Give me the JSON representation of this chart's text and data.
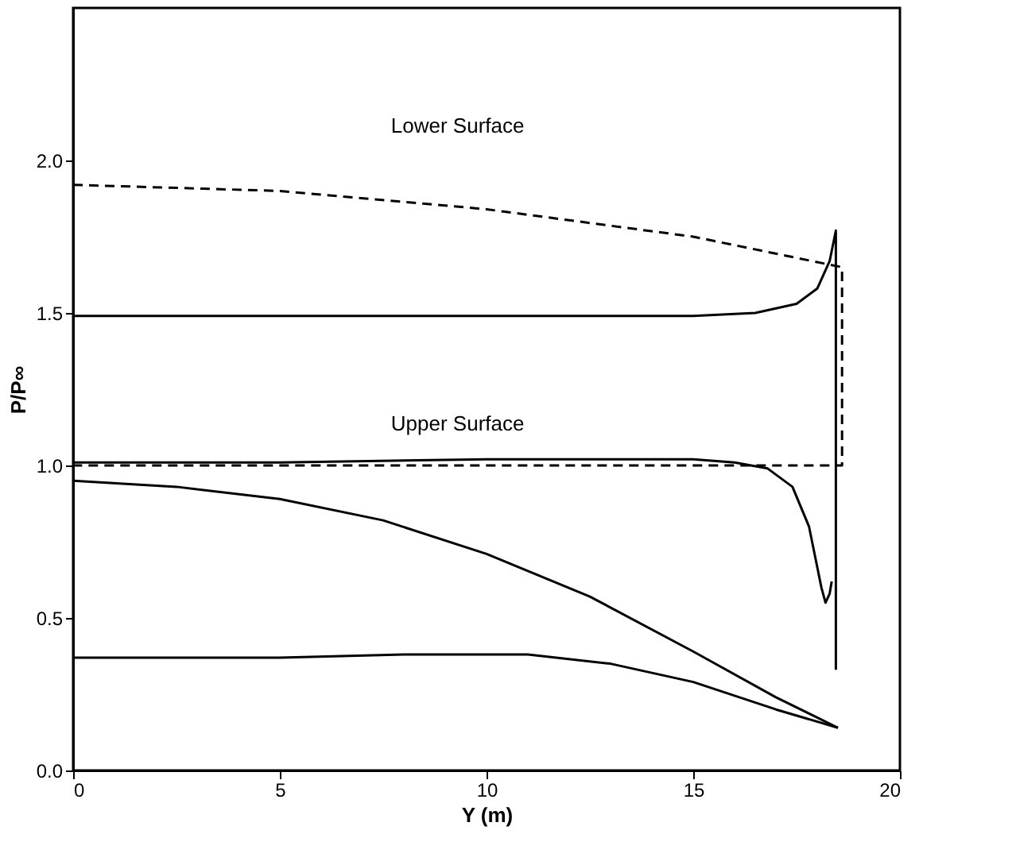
{
  "chart_data": {
    "type": "line",
    "xlabel": "Y (m)",
    "ylabel": "P/P∞",
    "xlim": [
      0,
      20
    ],
    "xticks": [
      0,
      5,
      10,
      15,
      20
    ],
    "ylim": [
      0,
      2.5
    ],
    "yticks": [
      {
        "value": 0,
        "label": "0.0"
      },
      {
        "value": 0.5,
        "label": "0.5"
      },
      {
        "value": 1,
        "label": "1.0"
      },
      {
        "value": 1.5,
        "label": "1.5"
      },
      {
        "value": 2,
        "label": "2.0"
      }
    ],
    "marker": "none",
    "annotations": [
      "Lower Surface",
      "Upper Surface"
    ],
    "series": [
      {
        "color": "#000000",
        "line_style": "solid",
        "x": [
          0,
          5,
          10,
          15,
          16.5,
          17.5,
          18.0,
          18.3,
          18.45,
          18.45
        ],
        "values": [
          1.49,
          1.49,
          1.49,
          1.49,
          1.5,
          1.53,
          1.58,
          1.67,
          1.77,
          0.33
        ]
      },
      {
        "color": "#000000",
        "line_style": "solid",
        "x": [
          0,
          5,
          10,
          15,
          16,
          16.8,
          17.4,
          17.8,
          18.1,
          18.2,
          18.3,
          18.35
        ],
        "values": [
          1.01,
          1.01,
          1.02,
          1.02,
          1.01,
          0.99,
          0.93,
          0.8,
          0.6,
          0.55,
          0.58,
          0.62
        ]
      },
      {
        "color": "#000000",
        "line_style": "solid",
        "x": [
          0,
          2.5,
          5,
          7.5,
          10,
          12.5,
          15,
          17,
          18.5
        ],
        "values": [
          0.95,
          0.93,
          0.89,
          0.82,
          0.71,
          0.57,
          0.39,
          0.24,
          0.14
        ]
      },
      {
        "color": "#000000",
        "line_style": "solid",
        "x": [
          0,
          5,
          8,
          11,
          13,
          15,
          17,
          18.5
        ],
        "values": [
          0.37,
          0.37,
          0.38,
          0.38,
          0.35,
          0.29,
          0.2,
          0.14
        ]
      },
      {
        "color": "#000000",
        "line_style": "dashed",
        "x": [
          0,
          5,
          10,
          15,
          18.6,
          18.6,
          0
        ],
        "values": [
          1.92,
          1.9,
          1.84,
          1.75,
          1.65,
          1.0,
          1.0
        ]
      }
    ]
  }
}
